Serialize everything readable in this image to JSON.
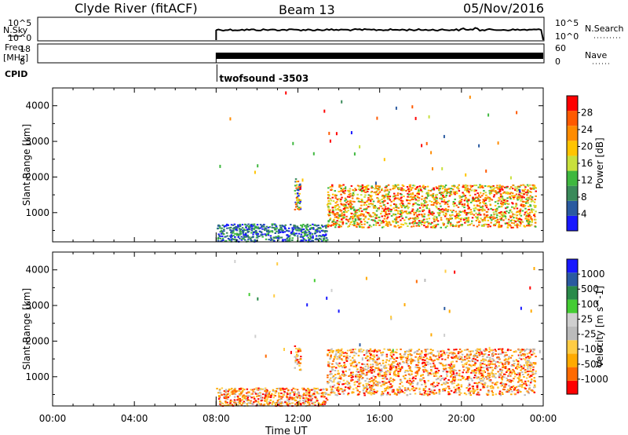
{
  "header": {
    "station": "Clyde River (fitACF)",
    "beam": "Beam 13",
    "date": "05/Nov/2016"
  },
  "status_panels": {
    "nsky_label": "N.Sky",
    "nsearch_label": "N.Search",
    "nsky_ticks": [
      "10^5",
      "10^0"
    ],
    "nsearch_ticks": [
      "10^5",
      "10^0"
    ],
    "freq_label_line1": "Freq.",
    "freq_label_line2": "[MHz]",
    "freq_ticks": [
      "18",
      "8"
    ],
    "nave_label": "Nave",
    "nave_ticks": [
      "60",
      "0"
    ],
    "cpid_label": "CPID",
    "cpid_value": "twofsound -3503"
  },
  "time_axis": {
    "label": "Time UT",
    "ticks": [
      "00:00",
      "04:00",
      "08:00",
      "12:00",
      "16:00",
      "20:00",
      "00:00"
    ]
  },
  "colors": {
    "power": [
      "#1818ff",
      "#2a5aa0",
      "#3a8a5a",
      "#3fb83f",
      "#c8e03c",
      "#ffc400",
      "#ff8c00",
      "#ff5a00",
      "#ff0000"
    ],
    "velocity": [
      "#ff0000",
      "#ff6a00",
      "#ffaa00",
      "#ffcc44",
      "#bbbbbb",
      "#cfcfcf",
      "#44cc33",
      "#2a8a4a",
      "#2a5aa0",
      "#1818ff"
    ]
  },
  "chart_data": [
    {
      "type": "heatmap",
      "title": "",
      "xlabel": "",
      "ylabel": "Slant Range [km]",
      "xlim": [
        0,
        24
      ],
      "ylim": [
        180,
        4500
      ],
      "yticks": [
        "1000",
        "2000",
        "3000",
        "4000"
      ],
      "colorbar": {
        "label": "Power [dB]",
        "ticks": [
          "4",
          "8",
          "12",
          "16",
          "20",
          "24",
          "28"
        ],
        "range": [
          0,
          30
        ]
      },
      "data_window_hours": [
        8.0,
        24.0
      ],
      "regions": [
        {
          "x": [
            11.8,
            12.1
          ],
          "y": [
            1100,
            2000
          ],
          "level": "mixed"
        },
        {
          "x": [
            13.4,
            23.6
          ],
          "y": [
            600,
            1800
          ],
          "level": "high"
        },
        {
          "x": [
            8.0,
            13.4
          ],
          "y": [
            200,
            700
          ],
          "level": "low"
        }
      ]
    },
    {
      "type": "heatmap",
      "title": "",
      "xlabel": "Time UT",
      "ylabel": "Slant Range [km]",
      "xlim": [
        0,
        24
      ],
      "ylim": [
        180,
        4500
      ],
      "yticks": [
        "1000",
        "2000",
        "3000",
        "4000"
      ],
      "colorbar": {
        "label": "Velocity [m s^-1]",
        "ticks": [
          "1000",
          "500",
          "100",
          "25",
          "-25",
          "-100",
          "-500",
          "-1000"
        ],
        "range": [
          -1200,
          1200
        ]
      },
      "data_window_hours": [
        8.0,
        24.0
      ],
      "regions": [
        {
          "x": [
            11.8,
            12.1
          ],
          "y": [
            1200,
            1900
          ],
          "level": "negative"
        },
        {
          "x": [
            13.4,
            23.6
          ],
          "y": [
            500,
            1800
          ],
          "level": "negative"
        },
        {
          "x": [
            8.0,
            13.4
          ],
          "y": [
            200,
            700
          ],
          "level": "negative"
        }
      ]
    }
  ]
}
